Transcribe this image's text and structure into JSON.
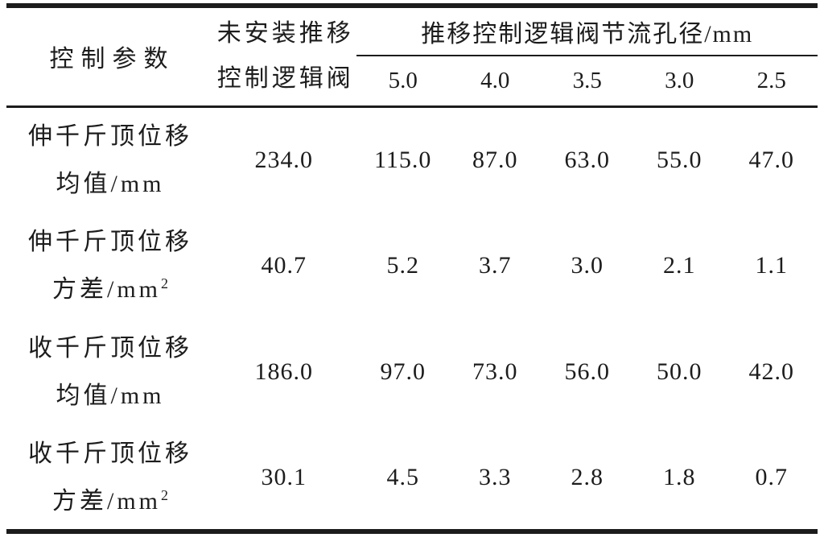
{
  "colors": {
    "background": "#ffffff",
    "text": "#1c1c1c",
    "rule": "#1c1c1c"
  },
  "table": {
    "header": {
      "param_col": "控制参数",
      "no_valve_line1": "未安装推移",
      "no_valve_line2": "控制逻辑阀",
      "group_title": "推移控制逻辑阀节流孔径/mm",
      "sub_cols": [
        "5.0",
        "4.0",
        "3.5",
        "3.0",
        "2.5"
      ]
    },
    "rows": [
      {
        "label1": "伸千斤顶位移",
        "label2": "均值/mm",
        "sup": "",
        "no_valve_value": "234.0",
        "values": [
          "115.0",
          "87.0",
          "63.0",
          "55.0",
          "47.0"
        ]
      },
      {
        "label1": "伸千斤顶位移",
        "label2": "方差/mm",
        "sup": "2",
        "no_valve_value": "40.7",
        "values": [
          "5.2",
          "3.7",
          "3.0",
          "2.1",
          "1.1"
        ]
      },
      {
        "label1": "收千斤顶位移",
        "label2": "均值/mm",
        "sup": "",
        "no_valve_value": "186.0",
        "values": [
          "97.0",
          "73.0",
          "56.0",
          "50.0",
          "42.0"
        ]
      },
      {
        "label1": "收千斤顶位移",
        "label2": "方差/mm",
        "sup": "2",
        "no_valve_value": "30.1",
        "values": [
          "4.5",
          "3.3",
          "2.8",
          "1.8",
          "0.7"
        ]
      }
    ]
  }
}
